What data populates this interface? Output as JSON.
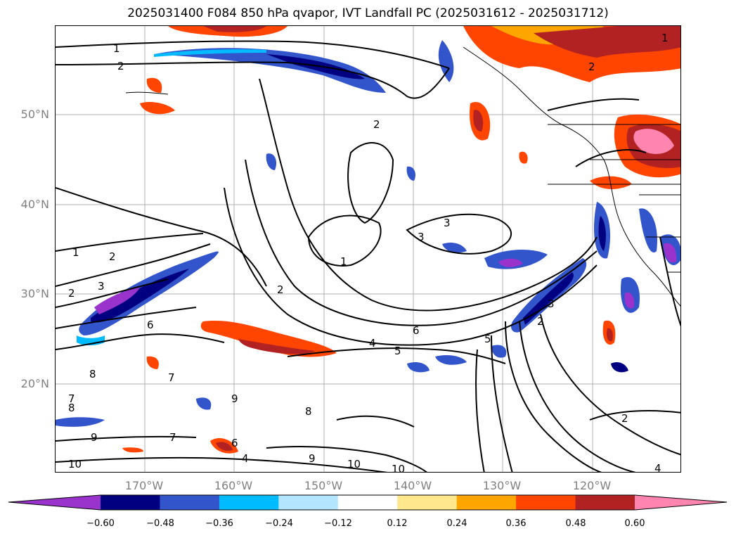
{
  "title": "2025031400 F084 850 hPa qvapor, IVT Landfall PC (2025031612 - 2025031712)",
  "lat_labels": [
    "50°N",
    "40°N",
    "30°N",
    "20°N"
  ],
  "lon_labels": [
    "170°W",
    "160°W",
    "150°W",
    "140°W",
    "130°W",
    "120°W"
  ],
  "colorbar": {
    "ticks": [
      "−0.60",
      "−0.48",
      "−0.36",
      "−0.24",
      "−0.12",
      "0.12",
      "0.24",
      "0.36",
      "0.48",
      "0.60"
    ],
    "colors": [
      "#9933cc",
      "#000080",
      "#3355cc",
      "#00bbff",
      "#b3e5ff",
      "#ffffff",
      "#ffe88c",
      "#ffa500",
      "#ff4500",
      "#b22222",
      "#ff85b0"
    ],
    "extend": "both"
  },
  "contour_labels": [
    "1",
    "2",
    "2",
    "1",
    "2",
    "3",
    "3",
    "1",
    "2",
    "2",
    "3",
    "4",
    "5",
    "5",
    "6",
    "7",
    "8",
    "9",
    "10",
    "10",
    "10",
    "4",
    "2",
    "2",
    "1",
    "2",
    "3",
    "7",
    "8",
    "7",
    "8",
    "9",
    "9",
    "6",
    "6",
    "4"
  ]
}
